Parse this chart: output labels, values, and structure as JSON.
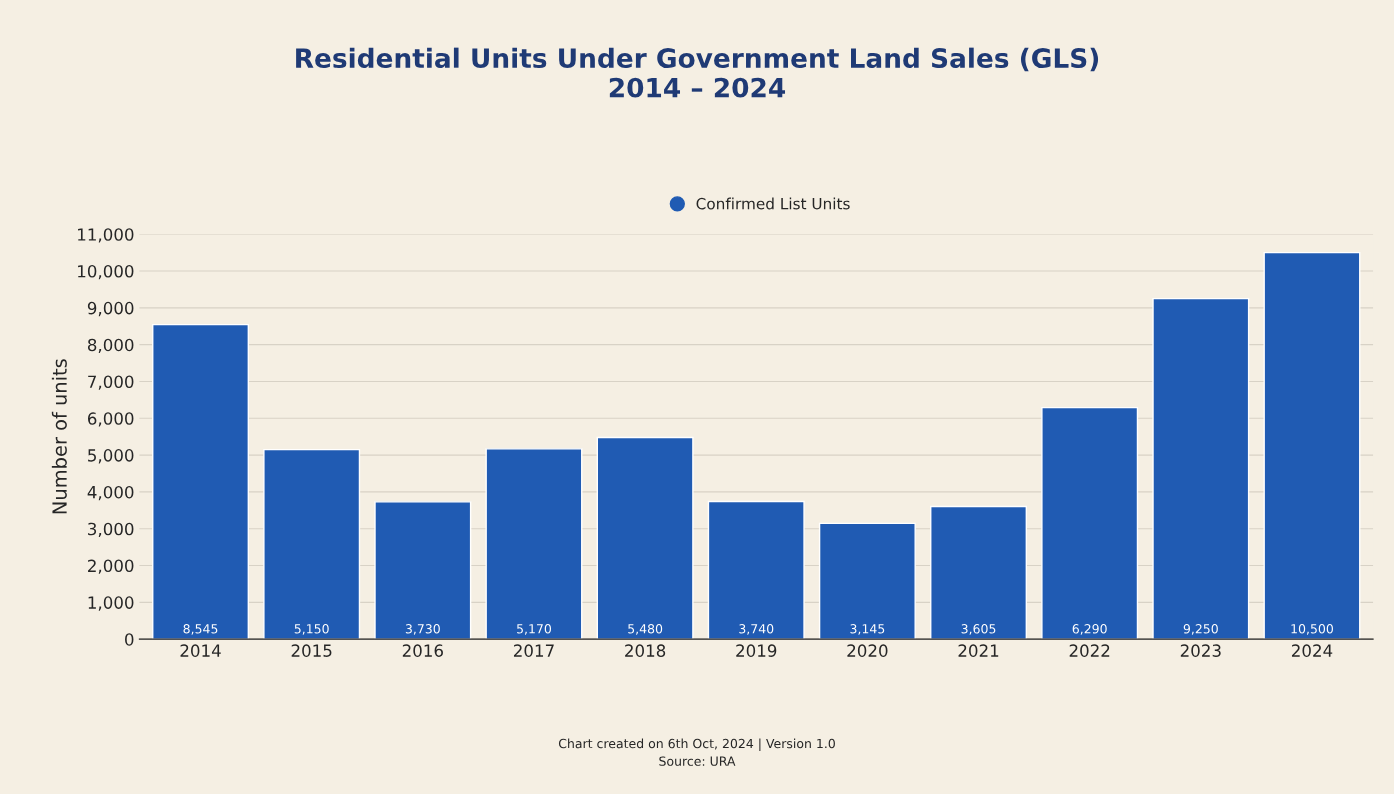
{
  "chart_data": {
    "type": "bar",
    "title": "Residential Units Under Government Land Sales (GLS)\n2014 – 2024",
    "ylabel": "Number of units",
    "categories": [
      "2014",
      "2015",
      "2016",
      "2017",
      "2018",
      "2019",
      "2020",
      "2021",
      "2022",
      "2023",
      "2024"
    ],
    "series": [
      {
        "name": "Confirmed List Units",
        "color": "#205bb3",
        "values": [
          8545,
          5150,
          3730,
          5170,
          5480,
          3740,
          3145,
          3605,
          6290,
          9250,
          10500
        ]
      }
    ],
    "value_labels": [
      "8,545",
      "5,150",
      "3,730",
      "5,170",
      "5,480",
      "3,740",
      "3,145",
      "3,605",
      "6,290",
      "9,250",
      "10,500"
    ],
    "ylim": [
      0,
      11000
    ],
    "yticks": [
      {
        "value": 0,
        "label": "0"
      },
      {
        "value": 1000,
        "label": "1,000"
      },
      {
        "value": 2000,
        "label": "2,000"
      },
      {
        "value": 3000,
        "label": "3,000"
      },
      {
        "value": 4000,
        "label": "4,000"
      },
      {
        "value": 5000,
        "label": "5,000"
      },
      {
        "value": 6000,
        "label": "6,000"
      },
      {
        "value": 7000,
        "label": "7,000"
      },
      {
        "value": 8000,
        "label": "8,000"
      },
      {
        "value": 9000,
        "label": "9,000"
      },
      {
        "value": 10000,
        "label": "10,000"
      },
      {
        "value": 11000,
        "label": "11,000"
      }
    ],
    "grid": "y",
    "legend": "top",
    "marker": "circle",
    "annotations": [
      "Chart created on 6th Oct, 2024 | Version 1.0",
      "Source: URA"
    ]
  }
}
